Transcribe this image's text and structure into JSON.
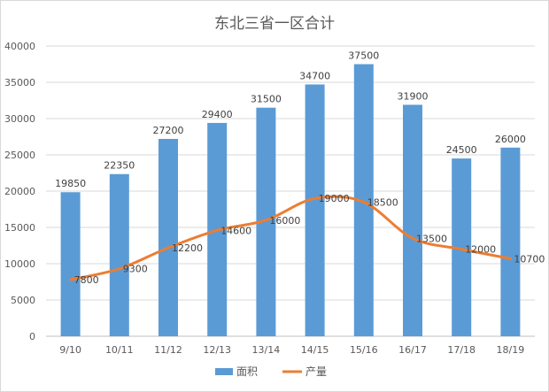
{
  "chart_data": {
    "type": "bar",
    "title": "东北三省一区合计",
    "categories": [
      "9/10",
      "10/11",
      "11/12",
      "12/13",
      "13/14",
      "14/15",
      "15/16",
      "16/17",
      "17/18",
      "18/19"
    ],
    "ylim": [
      0,
      40000
    ],
    "yticks": [
      0,
      5000,
      10000,
      15000,
      20000,
      25000,
      30000,
      35000,
      40000
    ],
    "grid": true,
    "legend_position": "bottom",
    "series": [
      {
        "name": "面积",
        "type": "bar",
        "color": "#5b9bd5",
        "values": [
          19850,
          22350,
          27200,
          29400,
          31500,
          34700,
          37500,
          31900,
          24500,
          26000
        ]
      },
      {
        "name": "产量",
        "type": "line",
        "color": "#ed7d31",
        "values": [
          7800,
          9300,
          12200,
          14600,
          16000,
          19000,
          18500,
          13500,
          12000,
          10700
        ]
      }
    ]
  }
}
